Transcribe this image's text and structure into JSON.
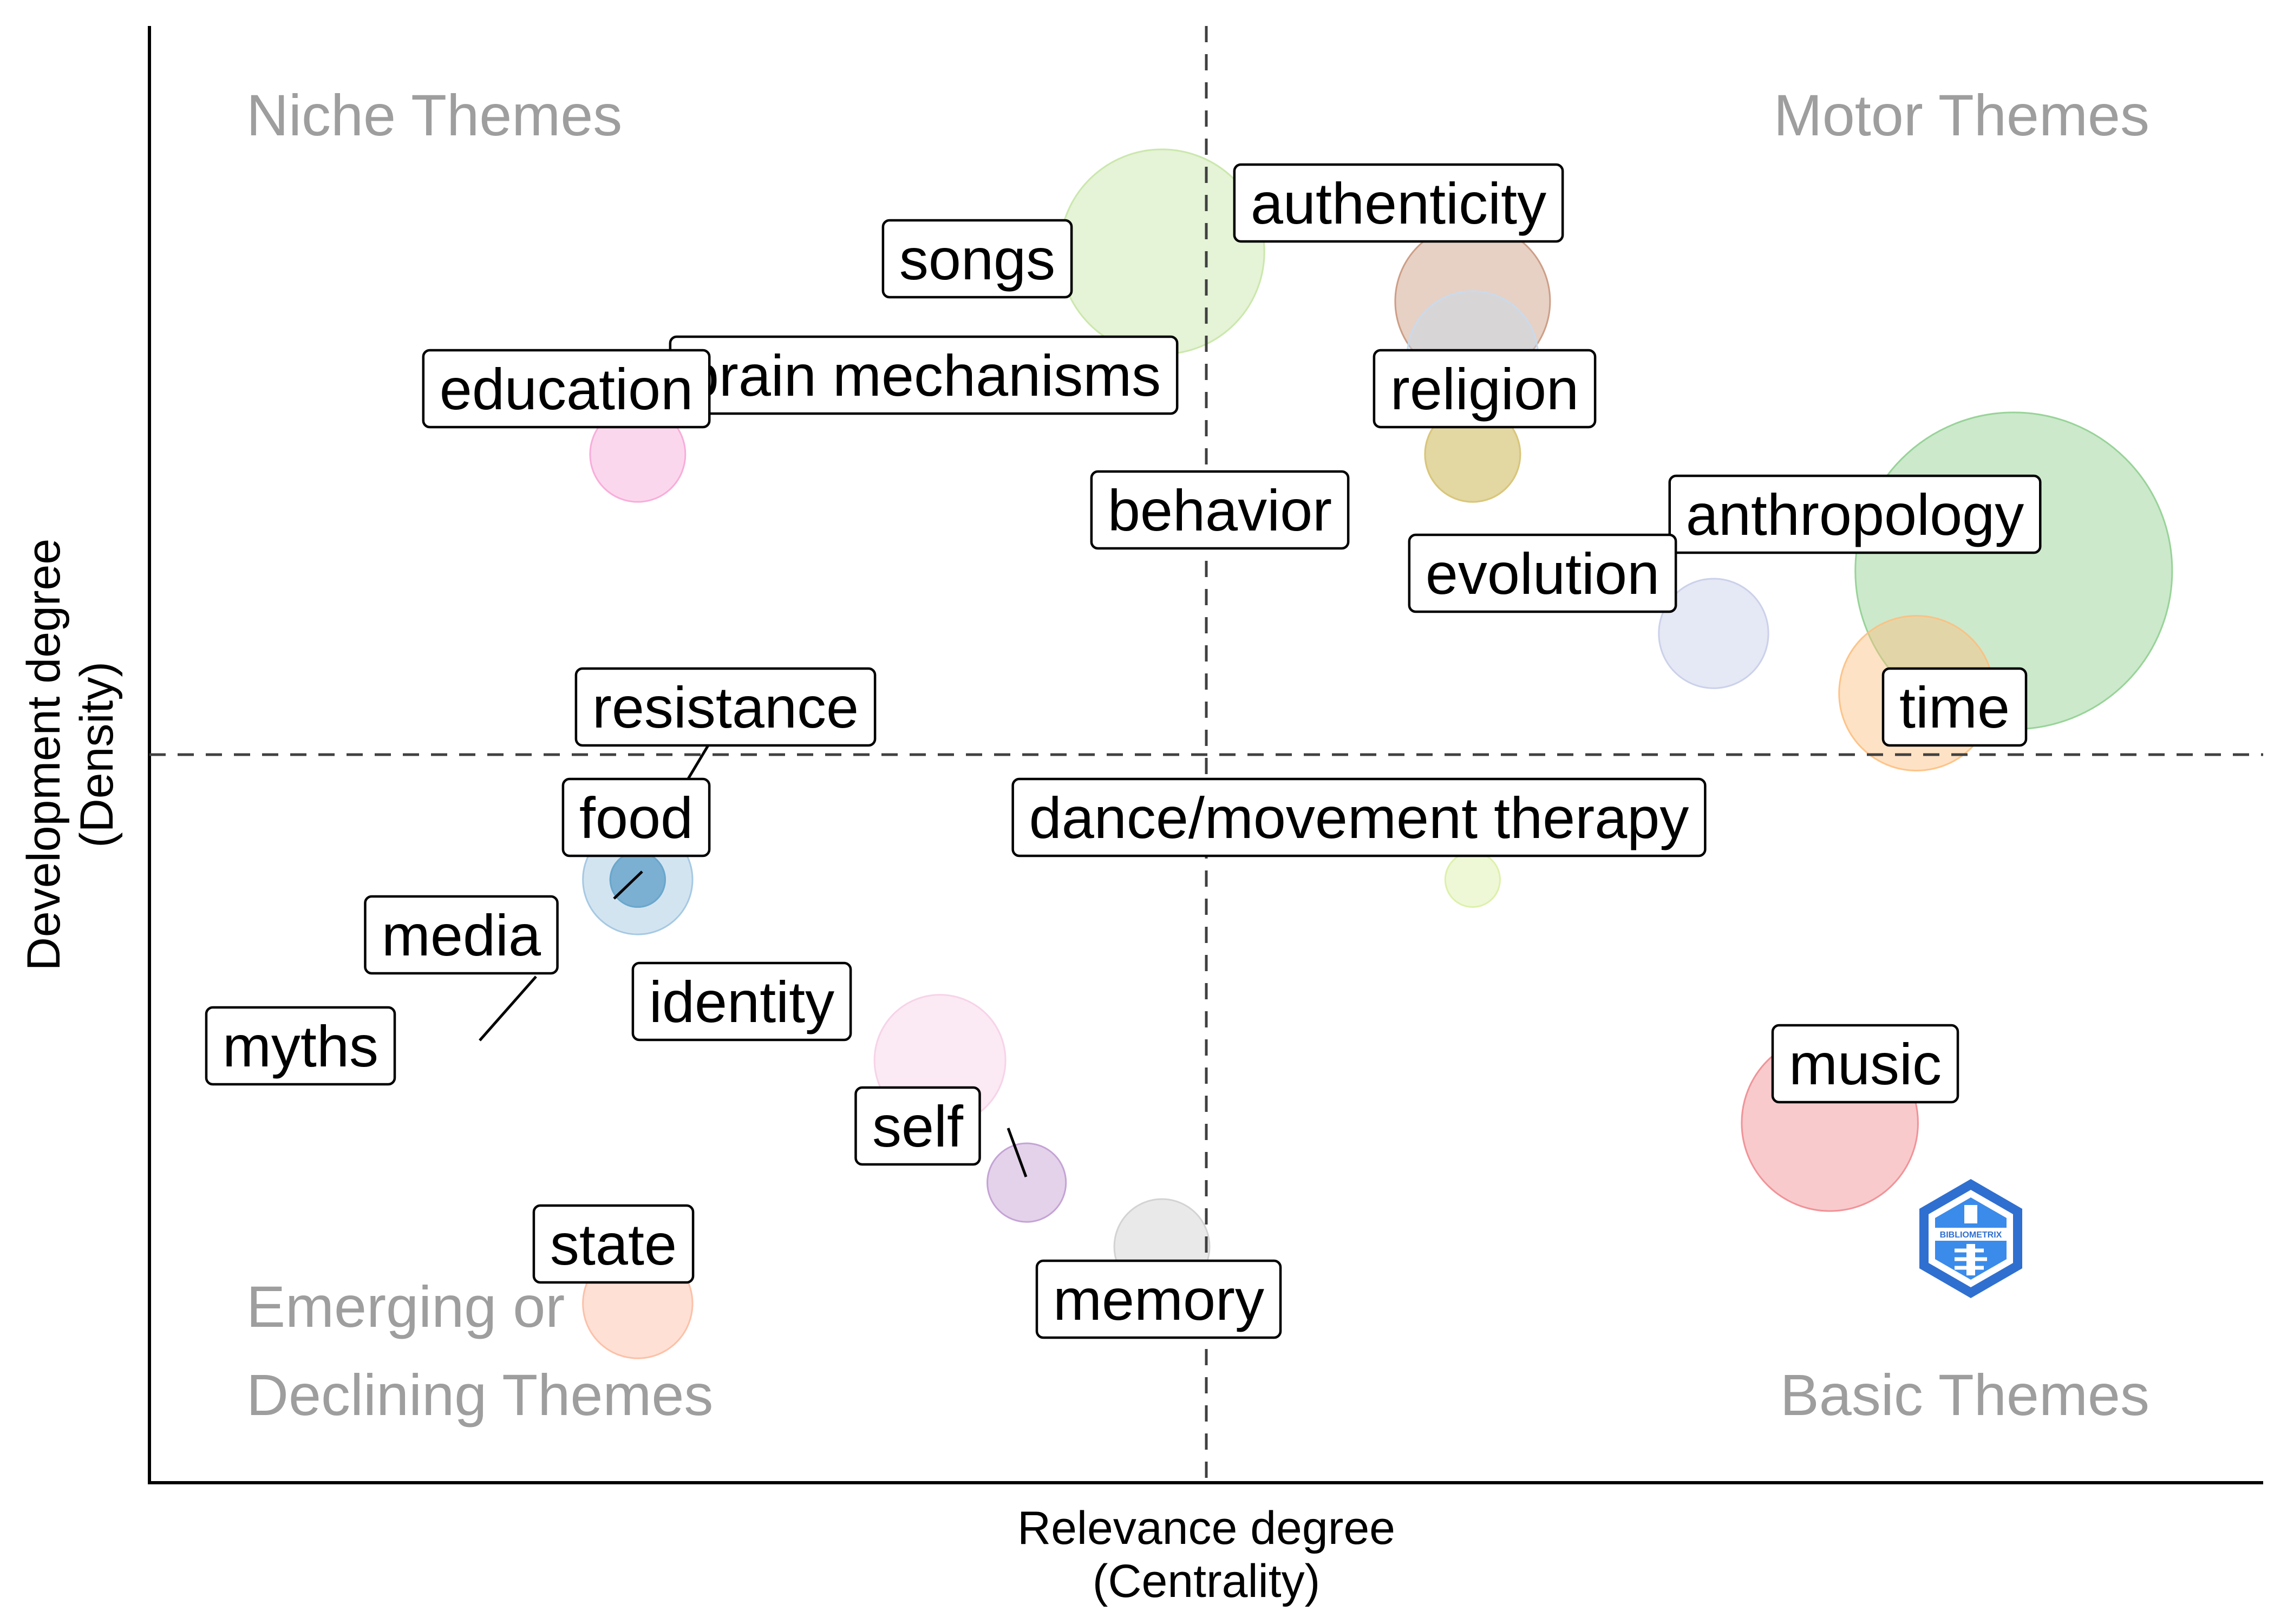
{
  "chart_data": {
    "type": "scatter",
    "title": "",
    "xlabel": "Relevance degree\n(Centrality)",
    "ylabel": "Development degree\n(Density)",
    "grid": false,
    "quadrants": {
      "top_left": "Niche Themes",
      "top_right": "Motor Themes",
      "bottom_left": "Emerging or\nDeclining Themes",
      "bottom_right": "Basic Themes"
    },
    "logo_text": "BIBLIOMETRIX",
    "points": [
      {
        "label": "songs",
        "x": 0.479,
        "y": 0.845,
        "size": 0.86,
        "color": "#c5e5a5"
      },
      {
        "label": "authenticity",
        "x": 0.626,
        "y": 0.811,
        "size": 0.65,
        "color": "#c9967c"
      },
      {
        "label": "brain mechanisms",
        "x": 0.626,
        "y": 0.773,
        "size": 0.55,
        "color": "#c6dbef"
      },
      {
        "label": "religion",
        "x": 0.626,
        "y": 0.706,
        "size": 0.4,
        "color": "#d8c57a"
      },
      {
        "label": "education",
        "x": 0.231,
        "y": 0.706,
        "size": 0.4,
        "color": "#f7a6d6"
      },
      {
        "label": "behavior",
        "x": 0.626,
        "y": 0.706,
        "size": 0.4,
        "color": "#d8c57a"
      },
      {
        "label": "anthropology",
        "x": 0.882,
        "y": 0.626,
        "size": 1.33,
        "color": "#8fcf8f"
      },
      {
        "label": "evolution",
        "x": 0.74,
        "y": 0.583,
        "size": 0.46,
        "color": "#c6cde8"
      },
      {
        "label": "time",
        "x": 0.836,
        "y": 0.542,
        "size": 0.65,
        "color": "#fdbf7f"
      },
      {
        "label": "resistance",
        "x": 0.231,
        "y": 0.414,
        "size": 0.23,
        "color": "#6aa7cc"
      },
      {
        "label": "food",
        "x": 0.231,
        "y": 0.414,
        "size": 0.46,
        "color": "#9ec4e0"
      },
      {
        "label": "media",
        "x": 0.231,
        "y": 0.414,
        "size": 0.23,
        "color": "#6aa7cc"
      },
      {
        "label": "myths",
        "x": 0.231,
        "y": 0.414,
        "size": 0.23,
        "color": "#6aa7cc"
      },
      {
        "label": "dance/movement therapy",
        "x": 0.626,
        "y": 0.414,
        "size": 0.23,
        "color": "#d9f0a3"
      },
      {
        "label": "identity",
        "x": 0.374,
        "y": 0.29,
        "size": 0.55,
        "color": "#f6cfe6"
      },
      {
        "label": "music",
        "x": 0.795,
        "y": 0.247,
        "size": 0.74,
        "color": "#ef8a8f"
      },
      {
        "label": "self",
        "x": 0.415,
        "y": 0.206,
        "size": 0.33,
        "color": "#c09bd1"
      },
      {
        "label": "memory",
        "x": 0.479,
        "y": 0.162,
        "size": 0.4,
        "color": "#cfcfcf"
      },
      {
        "label": "state",
        "x": 0.231,
        "y": 0.123,
        "size": 0.46,
        "color": "#fcbba1"
      }
    ]
  }
}
